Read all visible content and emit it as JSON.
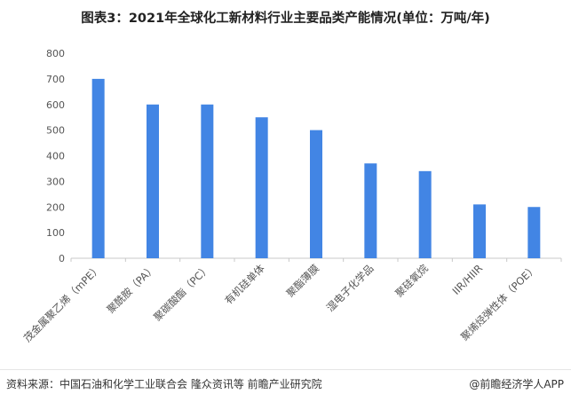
{
  "title": "图表3：2021年全球化工新材料行业主要品类产能情况(单位：万吨/年)",
  "source": "资料来源：中国石油和化学工业联合会 隆众资讯等 前瞻产业研究院",
  "credit": "@前瞻经济学人APP",
  "colors": {
    "bar": "#4285e4",
    "axis": "#c8c8c8",
    "text": "#555555"
  },
  "chart_data": {
    "type": "bar",
    "categories": [
      "茂金属聚乙烯（mPE）",
      "聚酰胺（PA）",
      "聚碳酸酯（PC）",
      "有机硅单体",
      "聚酯薄膜",
      "湿电子化学品",
      "聚硅氧烷",
      "IIR/HIIR",
      "聚烯烃弹性体（POE）"
    ],
    "values": [
      700,
      600,
      600,
      550,
      500,
      370,
      340,
      210,
      200
    ],
    "yticks": [
      0,
      100,
      200,
      300,
      400,
      500,
      600,
      700,
      800
    ],
    "ylim": [
      0,
      800
    ],
    "grid": false,
    "legend": "none"
  }
}
